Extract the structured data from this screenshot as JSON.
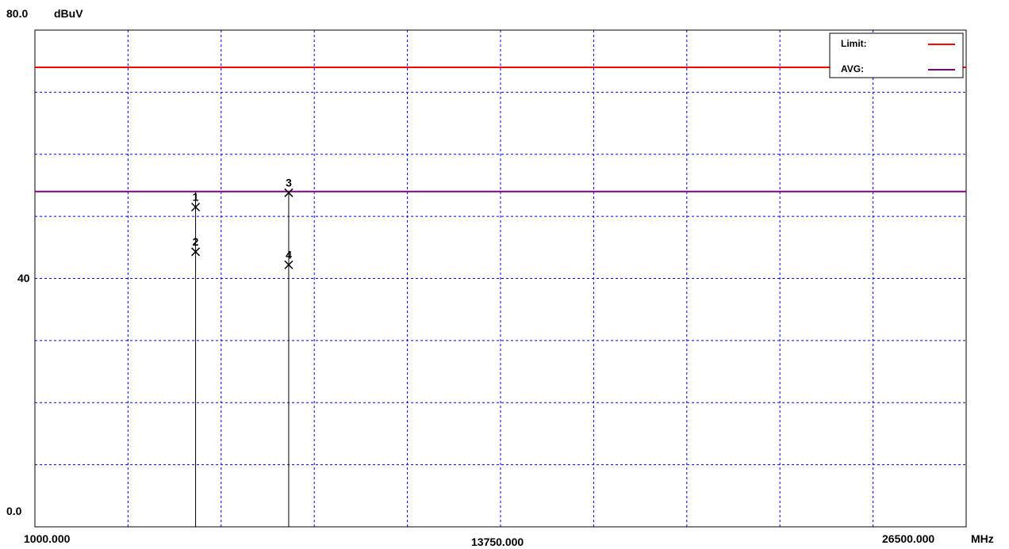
{
  "chart_data": {
    "type": "line",
    "y_top_label": "80.0",
    "y_mid_label": "40",
    "y_bottom_label": "0.0",
    "y_unit": "dBuV",
    "x_start_label": "1000.000",
    "x_mid_label": "13750.000",
    "x_end_label": "26500.000",
    "x_unit": "MHz",
    "xlim": [
      1000,
      26500
    ],
    "ylim": [
      0,
      80
    ],
    "grid": true,
    "legend_position": "top-right",
    "colors": {
      "limit": "#ff0000",
      "avg": "#800080",
      "grid": "#0000ff",
      "marker": "#000000"
    },
    "series": [
      {
        "name": "Limit:",
        "values": [
          74.0,
          74.0
        ]
      },
      {
        "name": "AVG:",
        "values": [
          54.0,
          54.0
        ]
      }
    ],
    "markers": [
      {
        "label": "1",
        "x": 5400,
        "y": 51.5
      },
      {
        "label": "2",
        "x": 5400,
        "y": 44.3
      },
      {
        "label": "3",
        "x": 7950,
        "y": 53.8
      },
      {
        "label": "4",
        "x": 7950,
        "y": 42.2
      }
    ],
    "stems": [
      {
        "x": 5400,
        "y": 54.0
      },
      {
        "x": 7950,
        "y": 53.8
      }
    ]
  }
}
